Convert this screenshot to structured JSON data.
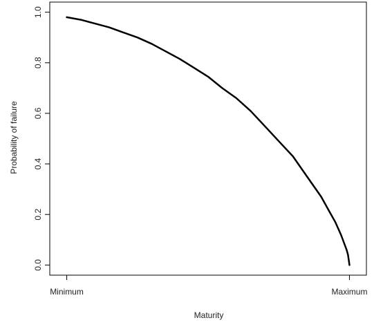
{
  "chart_data": {
    "type": "line",
    "xlabel": "Maturity",
    "ylabel": "Probability of failure",
    "x_ticks": [
      {
        "value": 0,
        "label": "Minimum"
      },
      {
        "value": 1,
        "label": "Maximum"
      }
    ],
    "y_ticks": [
      {
        "value": 0.0,
        "label": "0.0"
      },
      {
        "value": 0.2,
        "label": "0.2"
      },
      {
        "value": 0.4,
        "label": "0.4"
      },
      {
        "value": 0.6,
        "label": "0.6"
      },
      {
        "value": 0.8,
        "label": "0.8"
      },
      {
        "value": 1.0,
        "label": "1.0"
      }
    ],
    "xlim": [
      -0.06,
      1.06
    ],
    "ylim": [
      -0.04,
      1.04
    ],
    "grid": false,
    "series": [
      {
        "color": "#000000",
        "x": [
          0.0,
          0.05,
          0.1,
          0.15,
          0.2,
          0.25,
          0.3,
          0.35,
          0.4,
          0.45,
          0.5,
          0.55,
          0.6,
          0.65,
          0.7,
          0.75,
          0.8,
          0.85,
          0.9,
          0.93,
          0.95,
          0.97,
          0.98,
          0.99,
          0.995,
          1.0
        ],
        "y": [
          0.98,
          0.97,
          0.955,
          0.94,
          0.92,
          0.9,
          0.875,
          0.845,
          0.815,
          0.78,
          0.745,
          0.7,
          0.66,
          0.61,
          0.55,
          0.49,
          0.43,
          0.35,
          0.27,
          0.21,
          0.17,
          0.12,
          0.09,
          0.06,
          0.04,
          0.0
        ]
      }
    ]
  }
}
